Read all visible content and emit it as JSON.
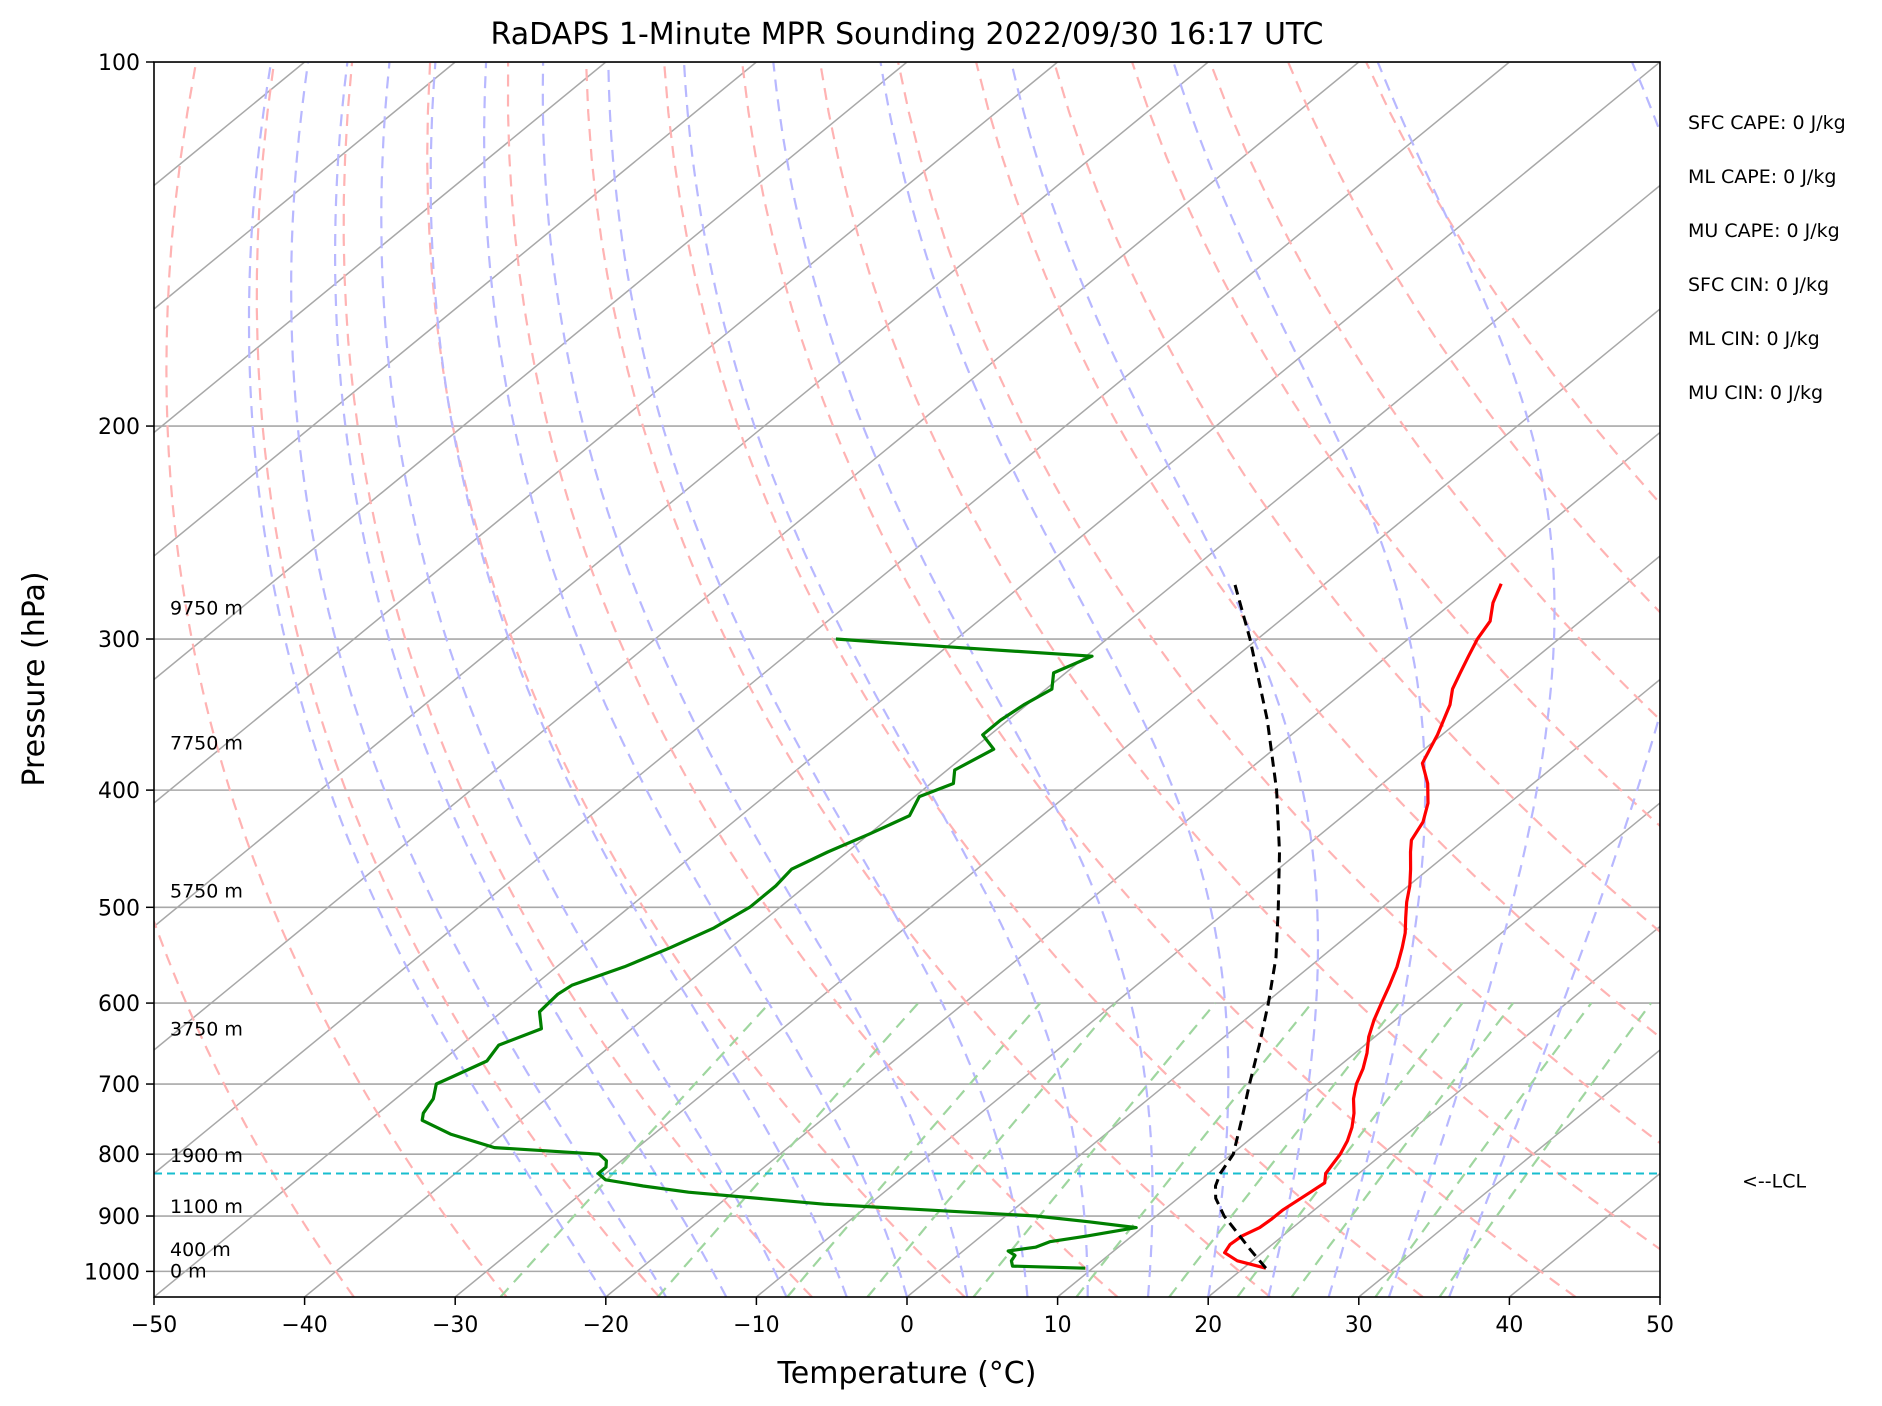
{
  "chart_data": {
    "type": "skew-t",
    "title": "RaDAPS 1-Minute MPR Sounding 2022/09/30 16:17 UTC",
    "xlabel": "Temperature (°C)",
    "ylabel": "Pressure (hPa)",
    "xlim": [
      -50,
      50
    ],
    "ylim": [
      1050,
      100
    ],
    "log_y": true,
    "x_ticks": [
      "−50",
      "−40",
      "−30",
      "−20",
      "−10",
      "0",
      "10",
      "20",
      "30",
      "40",
      "50"
    ],
    "x_tick_values": [
      -50,
      -40,
      -30,
      -20,
      -10,
      0,
      10,
      20,
      30,
      40,
      50
    ],
    "y_ticks": [
      "100",
      "200",
      "300",
      "400",
      "500",
      "600",
      "700",
      "800",
      "900",
      "1000"
    ],
    "y_tick_values": [
      100,
      200,
      300,
      400,
      500,
      600,
      700,
      800,
      900,
      1000
    ],
    "grid": true,
    "colors": {
      "temperature": "#ff0000",
      "dewpoint": "#008000",
      "parcel": "#000000",
      "lcl": "#17becf",
      "isotherm": "#a8a8a8",
      "dry_adiabat": "#ffb3b3",
      "moist_adiabat": "#b8b8ff",
      "mixing_ratio": "#9fd69f"
    },
    "temperature": [
      [
        994,
        21.5
      ],
      [
        980,
        19
      ],
      [
        965,
        17.5
      ],
      [
        950,
        17.2
      ],
      [
        935,
        17.3
      ],
      [
        920,
        17.8
      ],
      [
        905,
        17.9
      ],
      [
        890,
        17.9
      ],
      [
        860,
        18.3
      ],
      [
        845,
        18.5
      ],
      [
        830,
        17.8
      ],
      [
        815,
        17.5
      ],
      [
        800,
        17.2
      ],
      [
        780,
        16.6
      ],
      [
        760,
        15.8
      ],
      [
        740,
        14.8
      ],
      [
        720,
        13.6
      ],
      [
        700,
        12.6
      ],
      [
        680,
        11.8
      ],
      [
        660,
        10.8
      ],
      [
        640,
        9.6
      ],
      [
        620,
        8.6
      ],
      [
        600,
        7.7
      ],
      [
        580,
        6.8
      ],
      [
        560,
        5.8
      ],
      [
        540,
        4.6
      ],
      [
        525,
        3.6
      ],
      [
        510,
        2.4
      ],
      [
        495,
        1.2
      ],
      [
        480,
        0.1
      ],
      [
        465,
        -1.2
      ],
      [
        450,
        -2.6
      ],
      [
        440,
        -3.5
      ],
      [
        425,
        -4.2
      ],
      [
        410,
        -5.4
      ],
      [
        395,
        -7
      ],
      [
        380,
        -9
      ],
      [
        360,
        -10.3
      ],
      [
        340,
        -11.9
      ],
      [
        330,
        -13
      ],
      [
        320,
        -13.8
      ],
      [
        310,
        -14.6
      ],
      [
        300,
        -15.4
      ],
      [
        290,
        -16
      ],
      [
        280,
        -17.3
      ],
      [
        270,
        -18.3
      ]
    ],
    "dewpoint": [
      [
        994,
        9.5
      ],
      [
        990,
        4.5
      ],
      [
        980,
        4
      ],
      [
        970,
        3.8
      ],
      [
        962,
        3
      ],
      [
        955,
        4.5
      ],
      [
        945,
        5
      ],
      [
        935,
        7
      ],
      [
        920,
        9.6
      ],
      [
        910,
        6
      ],
      [
        900,
        2
      ],
      [
        880,
        -13
      ],
      [
        860,
        -23
      ],
      [
        850,
        -26.5
      ],
      [
        840,
        -29.5
      ],
      [
        830,
        -30.5
      ],
      [
        820,
        -30.5
      ],
      [
        810,
        -31
      ],
      [
        800,
        -32
      ],
      [
        790,
        -39.5
      ],
      [
        770,
        -43.5
      ],
      [
        750,
        -46.5
      ],
      [
        740,
        -47
      ],
      [
        720,
        -47.5
      ],
      [
        700,
        -48.5
      ],
      [
        690,
        -48
      ],
      [
        670,
        -47
      ],
      [
        650,
        -47.5
      ],
      [
        630,
        -46
      ],
      [
        610,
        -47.5
      ],
      [
        590,
        -47.7
      ],
      [
        580,
        -47.5
      ],
      [
        560,
        -45.5
      ],
      [
        540,
        -44
      ],
      [
        520,
        -42.7
      ],
      [
        500,
        -42
      ],
      [
        480,
        -42
      ],
      [
        465,
        -42.3
      ],
      [
        450,
        -41.3
      ],
      [
        435,
        -40
      ],
      [
        420,
        -38.8
      ],
      [
        405,
        -39.7
      ],
      [
        395,
        -38.5
      ],
      [
        385,
        -39.5
      ],
      [
        370,
        -38.6
      ],
      [
        360,
        -40.5
      ],
      [
        350,
        -40.5
      ],
      [
        340,
        -40.2
      ],
      [
        330,
        -39.6
      ],
      [
        320,
        -40.8
      ],
      [
        310,
        -39.6
      ],
      [
        305,
        -49
      ],
      [
        302,
        -54.5
      ],
      [
        300,
        -58
      ]
    ],
    "parcel": [
      [
        994,
        21.5
      ],
      [
        960,
        19
      ],
      [
        930,
        16.8
      ],
      [
        900,
        14.5
      ],
      [
        870,
        12.5
      ],
      [
        850,
        11.5
      ],
      [
        830,
        10.8
      ],
      [
        800,
        10.1
      ],
      [
        750,
        7.9
      ],
      [
        700,
        5.5
      ],
      [
        650,
        3
      ],
      [
        600,
        0.2
      ],
      [
        550,
        -3
      ],
      [
        500,
        -6.9
      ],
      [
        450,
        -11.3
      ],
      [
        400,
        -16.5
      ],
      [
        350,
        -22.8
      ],
      [
        300,
        -30.5
      ],
      [
        270,
        -36
      ]
    ],
    "lcl_pressure": 830,
    "lcl_label": "<--LCL",
    "height_labels": [
      {
        "text": "9750 m",
        "p": 283
      },
      {
        "text": "7750 m",
        "p": 366
      },
      {
        "text": "5750 m",
        "p": 485
      },
      {
        "text": "3750 m",
        "p": 631
      },
      {
        "text": "1900 m",
        "p": 803
      },
      {
        "text": "1100 m",
        "p": 885
      },
      {
        "text": "400 m",
        "p": 960
      },
      {
        "text": "0 m",
        "p": 1000
      }
    ],
    "indices": [
      "SFC CAPE: 0 J/kg",
      "ML CAPE: 0 J/kg",
      "MU CAPE: 0 J/kg",
      "SFC CIN: 0 J/kg",
      "ML CIN: 0 J/kg",
      "MU CIN: 0 J/kg"
    ]
  }
}
